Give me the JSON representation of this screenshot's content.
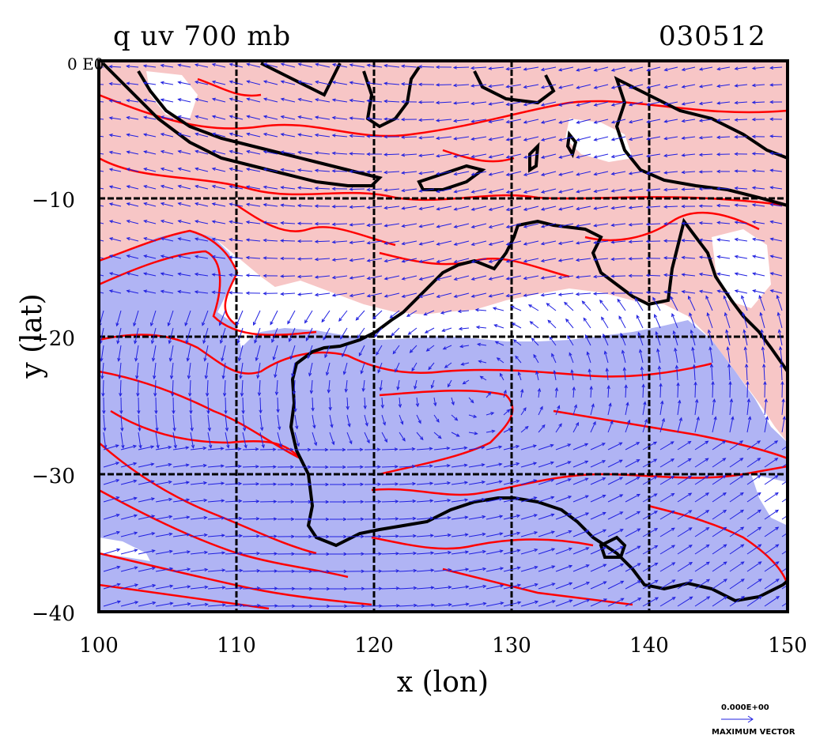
{
  "title": "q uv 700 mb",
  "date": "030512",
  "corner_label": "0 E0",
  "x_axis": {
    "label": "x (lon)",
    "ticks": [
      "100",
      "110",
      "120",
      "130",
      "140",
      "150"
    ],
    "range": [
      100,
      150
    ]
  },
  "y_axis": {
    "label": "y (lat)",
    "ticks": [
      "−10",
      "−20",
      "−30",
      "−40"
    ],
    "range": [
      -40,
      0
    ]
  },
  "vector_key": {
    "value": "0.000E+00",
    "label": "MAXIMUM VECTOR"
  },
  "colors": {
    "moist_fill": "#f7c6c6",
    "dry_fill": "#b0b4f4",
    "contour": "#ff0000",
    "coast": "#000000",
    "vectors": "#2020e0",
    "grid": "#000000"
  },
  "map_features": {
    "grid_spacing_deg": 10,
    "land_outline": "Australia, Indonesia, New Guinea coastlines",
    "field": "specific humidity with 700 mb wind vectors"
  }
}
